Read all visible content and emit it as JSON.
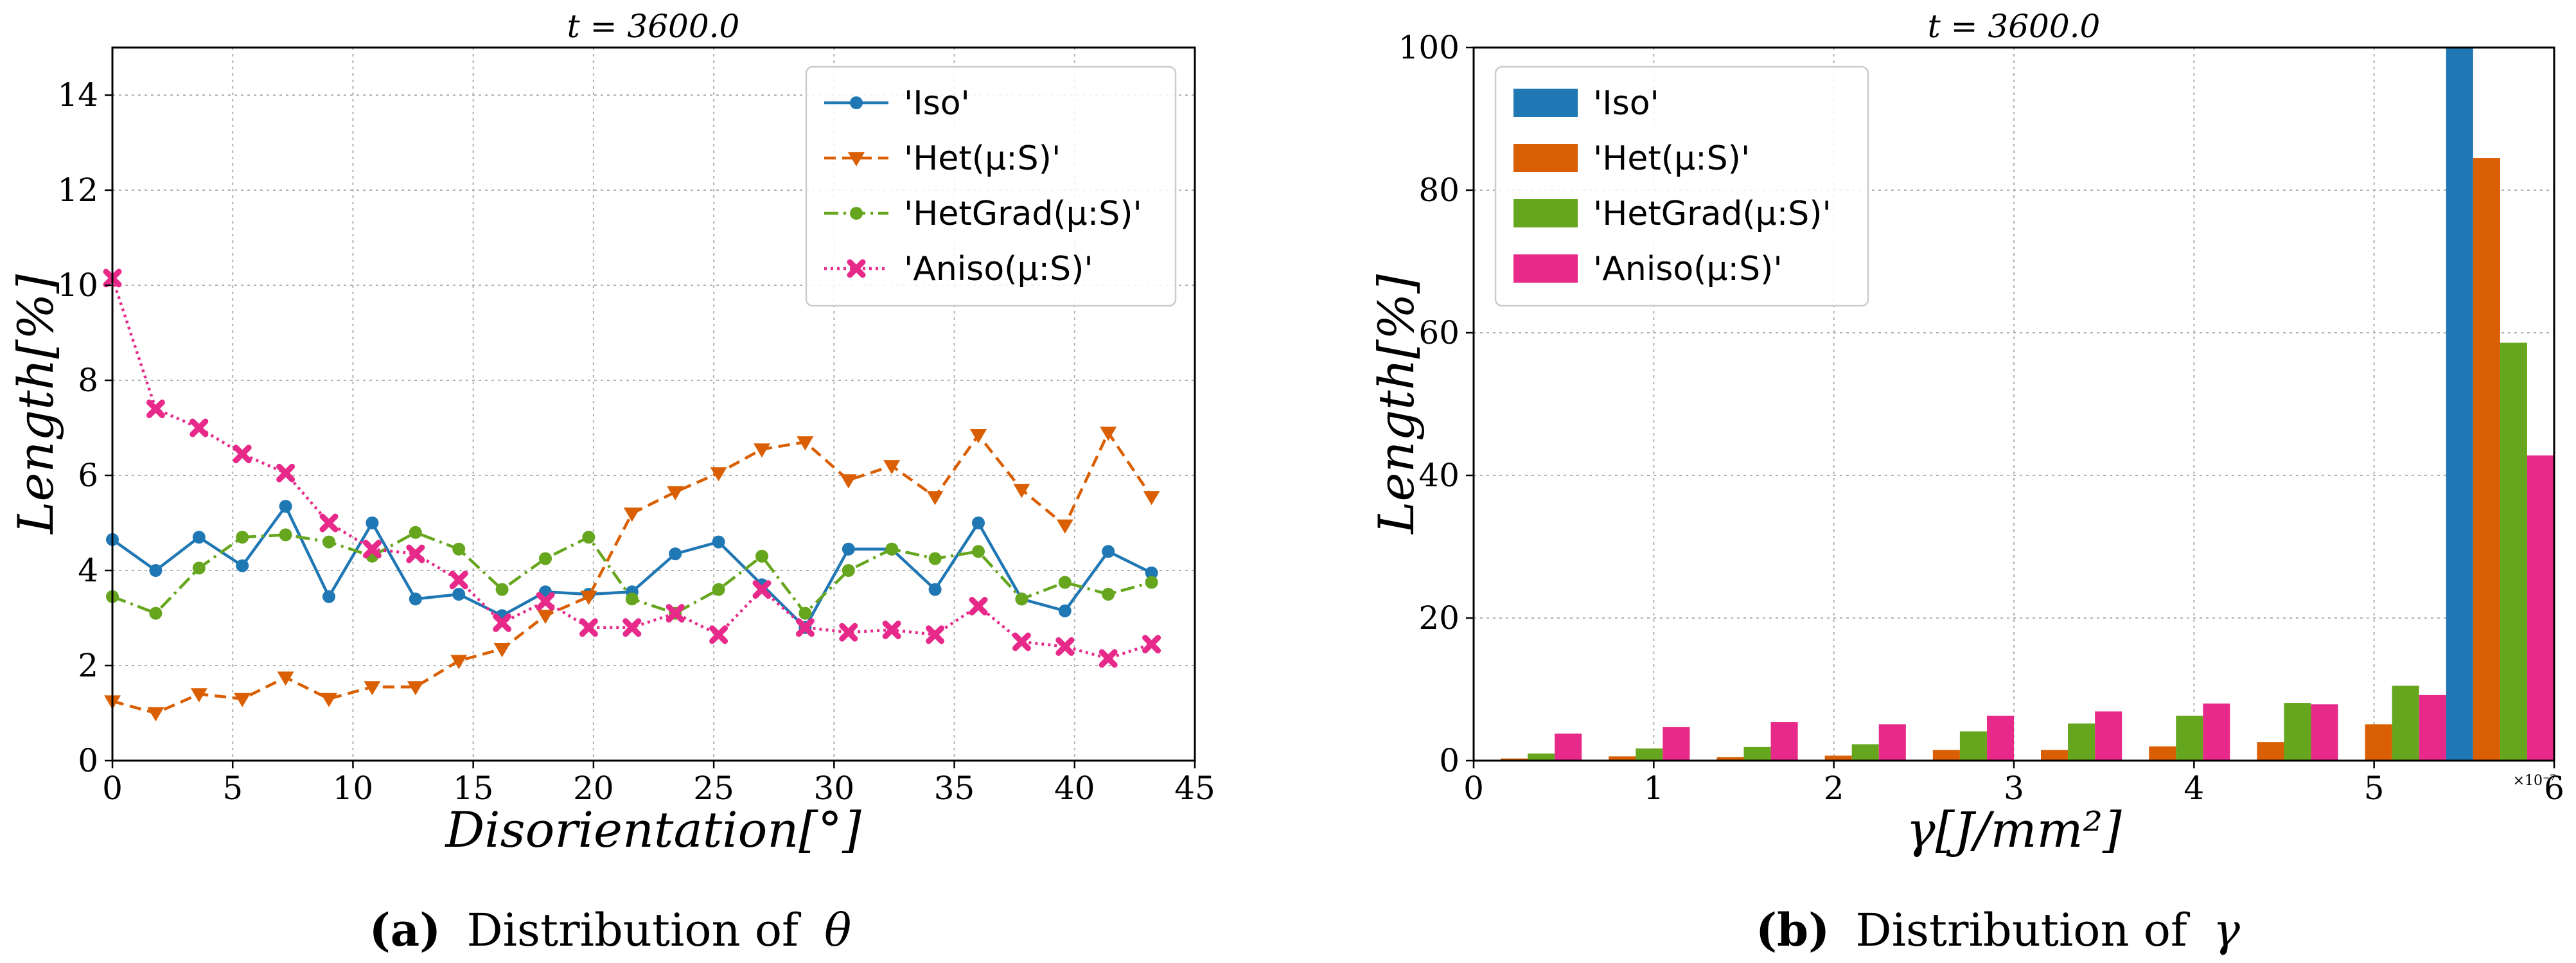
{
  "chart_data": [
    {
      "type": "line",
      "title": "t = 3600.0",
      "xlabel": "Disorientation[°]",
      "ylabel": "Length[%]",
      "xlim": [
        0,
        45
      ],
      "ylim": [
        0,
        15
      ],
      "xticks": [
        "0",
        "5",
        "10",
        "15",
        "20",
        "25",
        "30",
        "35",
        "40",
        "45"
      ],
      "yticks": [
        "0",
        "2",
        "4",
        "6",
        "8",
        "10",
        "12",
        "14"
      ],
      "grid": true,
      "legend_position": "top-right",
      "x": [
        0,
        1.8,
        3.6,
        5.4,
        7.2,
        9.0,
        10.8,
        12.6,
        14.4,
        16.2,
        18.0,
        19.8,
        21.6,
        23.4,
        25.2,
        27.0,
        28.8,
        30.6,
        32.4,
        34.2,
        36.0,
        37.8,
        39.6,
        41.4,
        43.2
      ],
      "series": [
        {
          "name": "'Iso'",
          "color": "#1f77b4",
          "dash": "",
          "marker": "circle",
          "values": [
            4.65,
            4.0,
            4.7,
            4.1,
            5.35,
            3.45,
            5.0,
            3.4,
            3.5,
            3.05,
            3.55,
            3.5,
            3.55,
            4.35,
            4.6,
            3.7,
            2.8,
            4.45,
            4.45,
            3.6,
            5.0,
            3.4,
            3.15,
            4.4,
            3.95
          ]
        },
        {
          "name": "'Het(μ:S)'",
          "color": "#d95f02",
          "dash": "18,10",
          "marker": "triangle",
          "values": [
            1.25,
            1.0,
            1.4,
            1.3,
            1.75,
            1.3,
            1.55,
            1.55,
            2.1,
            2.35,
            3.05,
            3.45,
            5.2,
            5.65,
            6.05,
            6.55,
            6.7,
            5.9,
            6.2,
            5.55,
            6.85,
            5.7,
            4.95,
            6.9,
            5.55
          ]
        },
        {
          "name": "'HetGrad(μ:S)'",
          "color": "#66a61e",
          "dash": "22,8,4,8",
          "marker": "circle",
          "values": [
            3.45,
            3.1,
            4.05,
            4.7,
            4.75,
            4.6,
            4.3,
            4.8,
            4.45,
            3.6,
            4.25,
            4.7,
            3.4,
            3.1,
            3.6,
            4.3,
            3.1,
            4.0,
            4.45,
            4.25,
            4.4,
            3.4,
            3.75,
            3.5,
            3.75
          ]
        },
        {
          "name": "'Aniso(μ:S)'",
          "color": "#e7298a",
          "dash": "4,6",
          "marker": "x",
          "values": [
            10.15,
            7.4,
            7.0,
            6.45,
            6.05,
            5.0,
            4.45,
            4.35,
            3.8,
            2.9,
            3.35,
            2.8,
            2.8,
            3.1,
            2.65,
            3.6,
            2.8,
            2.7,
            2.75,
            2.65,
            3.25,
            2.5,
            2.4,
            2.15,
            2.45
          ]
        }
      ]
    },
    {
      "type": "bar",
      "title": "t = 3600.0",
      "xlabel": "γ[J/mm²]",
      "ylabel": "Length[%]",
      "xlim": [
        0,
        6
      ],
      "ylim": [
        0,
        100
      ],
      "xticks": [
        "0",
        "1",
        "2",
        "3",
        "4",
        "5",
        "6"
      ],
      "yticks": [
        "0",
        "20",
        "40",
        "60",
        "80",
        "100"
      ],
      "x_scale_label": "×10⁻⁷",
      "grid": true,
      "legend_position": "top-left",
      "bin_edges": [
        0,
        0.6,
        1.2,
        1.8,
        2.4,
        3.0,
        3.6,
        4.2,
        4.8,
        5.4,
        6.0
      ],
      "series": [
        {
          "name": "'Iso'",
          "color": "#1f77b4",
          "values": [
            0,
            0,
            0,
            0,
            0,
            0,
            0,
            0,
            0,
            100
          ]
        },
        {
          "name": "'Het(μ:S)'",
          "color": "#d95f02",
          "values": [
            0.3,
            0.6,
            0.5,
            0.7,
            1.5,
            1.5,
            2.0,
            2.6,
            5.1,
            84.5
          ]
        },
        {
          "name": "'HetGrad(μ:S)'",
          "color": "#66a61e",
          "values": [
            1.0,
            1.7,
            1.9,
            2.3,
            4.1,
            5.2,
            6.3,
            8.1,
            10.5,
            58.6
          ]
        },
        {
          "name": "'Aniso(μ:S)'",
          "color": "#e7298a",
          "values": [
            3.8,
            4.7,
            5.4,
            5.1,
            6.3,
            6.9,
            8.0,
            7.9,
            9.2,
            42.8
          ]
        }
      ]
    }
  ],
  "captions": {
    "a": {
      "label": "(a)",
      "text": "Distribution of",
      "symbol": "θ"
    },
    "b": {
      "label": "(b)",
      "text": "Distribution of",
      "symbol": "γ"
    }
  }
}
